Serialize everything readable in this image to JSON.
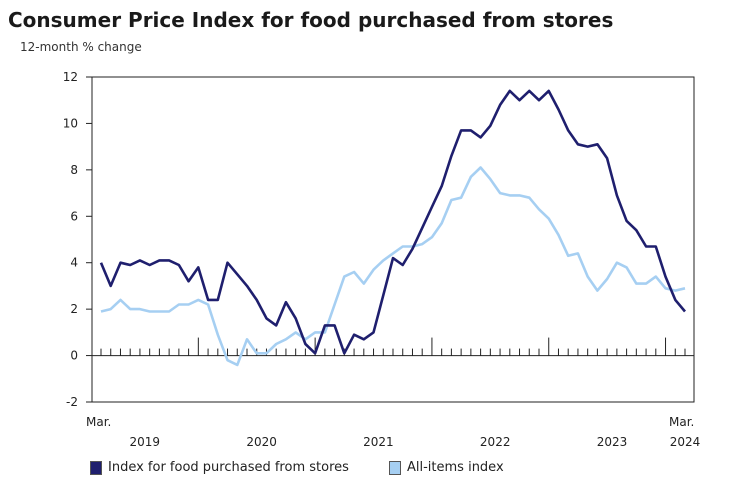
{
  "title": "Consumer Price Index for food purchased from stores",
  "chart_data": {
    "type": "line",
    "title": "Consumer Price Index for food purchased from stores",
    "ylabel": "12-month % change",
    "ylim": [
      -2,
      12
    ],
    "yticks": [
      -2,
      0,
      2,
      4,
      6,
      8,
      10,
      12
    ],
    "x_start_label": "Mar.",
    "x_end_label": "Mar.",
    "year_labels": [
      "2019",
      "2020",
      "2021",
      "2022",
      "2023",
      "2024"
    ],
    "x_months": 61,
    "series": [
      {
        "name": "Index for food purchased from stores",
        "color": "#1f1f6e",
        "values": [
          4.0,
          3.0,
          4.0,
          3.9,
          4.1,
          3.9,
          4.1,
          4.1,
          3.9,
          3.2,
          3.8,
          2.4,
          2.4,
          4.0,
          3.5,
          3.0,
          2.4,
          1.6,
          1.3,
          2.3,
          1.6,
          0.5,
          0.1,
          1.3,
          1.3,
          0.1,
          0.9,
          0.7,
          1.0,
          2.6,
          4.2,
          3.9,
          4.6,
          5.5,
          6.4,
          7.3,
          8.6,
          9.7,
          9.7,
          9.4,
          9.9,
          10.8,
          11.4,
          11.0,
          11.4,
          11.0,
          11.4,
          10.6,
          9.7,
          9.1,
          9.0,
          9.1,
          8.5,
          6.9,
          5.8,
          5.4,
          4.7,
          4.7,
          3.4,
          2.4,
          1.9
        ],
        "legend": "Index for food purchased from stores"
      },
      {
        "name": "All-items index",
        "color": "#a6cff2",
        "values": [
          1.9,
          2.0,
          2.4,
          2.0,
          2.0,
          1.9,
          1.9,
          1.9,
          2.2,
          2.2,
          2.4,
          2.2,
          0.9,
          -0.2,
          -0.4,
          0.7,
          0.1,
          0.1,
          0.5,
          0.7,
          1.0,
          0.7,
          1.0,
          1.0,
          2.2,
          3.4,
          3.6,
          3.1,
          3.7,
          4.1,
          4.4,
          4.7,
          4.7,
          4.8,
          5.1,
          5.7,
          6.7,
          6.8,
          7.7,
          8.1,
          7.6,
          7.0,
          6.9,
          6.9,
          6.8,
          6.3,
          5.9,
          5.2,
          4.3,
          4.4,
          3.4,
          2.8,
          3.3,
          4.0,
          3.8,
          3.1,
          3.1,
          3.4,
          2.9,
          2.8,
          2.9
        ],
        "legend": "All-items index"
      }
    ]
  }
}
